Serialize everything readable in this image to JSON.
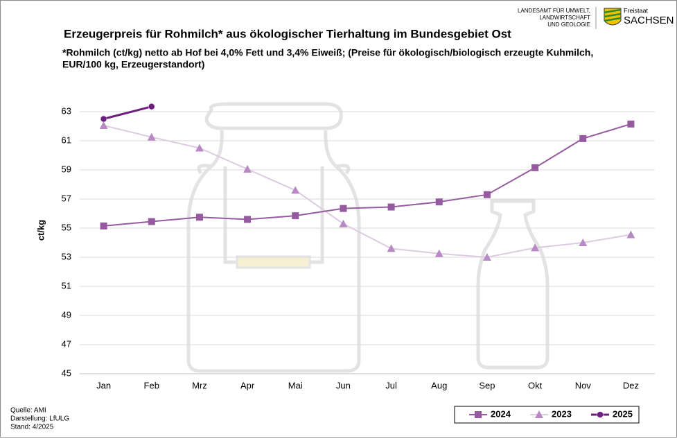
{
  "chart_data": {
    "type": "line",
    "title": "Erzeugerpreis für Rohmilch* aus ökologischer Tierhaltung im Bundesgebiet Ost",
    "subtitle": [
      "*Rohmilch (ct/kg) netto ab Hof bei 4,0% Fett und 3,4% Eiweiß; (Preise für ökologisch/biologisch erzeugte Kuhmilch,",
      "EUR/100 kg, Erzeugerstandort)"
    ],
    "y_label": "ct/kg",
    "categories": [
      "Jan",
      "Feb",
      "Mrz",
      "Apr",
      "Mai",
      "Jun",
      "Jul",
      "Aug",
      "Sep",
      "Okt",
      "Nov",
      "Dez"
    ],
    "series": [
      {
        "name": "2024",
        "color": "#955a9f",
        "marker": "square",
        "values": [
          55.15,
          55.45,
          55.75,
          55.6,
          55.85,
          56.35,
          56.45,
          56.8,
          57.3,
          59.15,
          61.15,
          62.15
        ]
      },
      {
        "name": "2023",
        "color": "#b88ac4",
        "line_color": "#dccbe2",
        "marker": "triangle",
        "values": [
          62.05,
          61.25,
          60.5,
          59.05,
          57.6,
          55.3,
          53.6,
          53.25,
          53.0,
          53.65,
          54.0,
          54.55
        ]
      },
      {
        "name": "2025",
        "color": "#6c1f7d",
        "marker": "circle",
        "values": [
          62.5,
          63.35,
          null,
          null,
          null,
          null,
          null,
          null,
          null,
          null,
          null,
          null
        ]
      }
    ],
    "ylim": [
      45,
      64
    ],
    "yticks": [
      45,
      47,
      49,
      51,
      53,
      55,
      57,
      59,
      61,
      63
    ],
    "grid": true,
    "legend": "bottom-right",
    "notes": [
      "Quelle: AMI",
      "Darstellung: LfULG",
      "Stand: 4/2025"
    ]
  },
  "logo": {
    "lines": [
      "LANDESAMT FÜR UMWELT,",
      "LANDWIRTSCHAFT",
      "UND GEOLOGIE"
    ],
    "state_small": "Freistaat",
    "state": "SACHSEN"
  }
}
